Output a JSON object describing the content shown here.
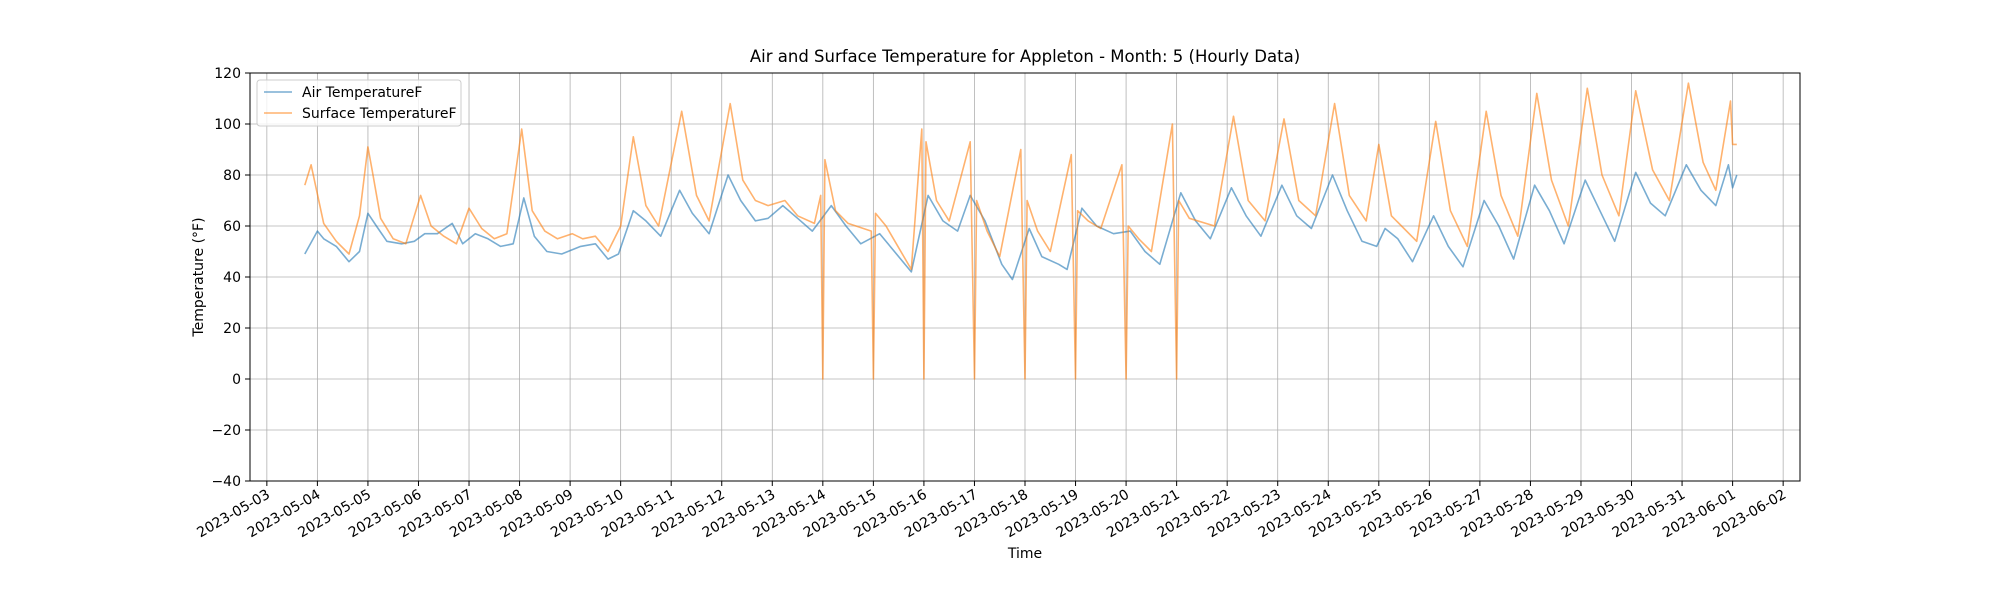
{
  "chart_data": {
    "type": "line",
    "title": "Air and Surface Temperature for Appleton - Month: 5 (Hourly Data)",
    "xlabel": "Time",
    "ylabel": "Temperature (°F)",
    "xlim": [
      "2023-05-02T16:00",
      "2023-06-02T08:00"
    ],
    "ylim": [
      -40,
      120
    ],
    "yticks": [
      -40,
      -20,
      0,
      20,
      40,
      60,
      80,
      100,
      120
    ],
    "xticks": [
      "2023-05-03",
      "2023-05-04",
      "2023-05-05",
      "2023-05-06",
      "2023-05-07",
      "2023-05-08",
      "2023-05-09",
      "2023-05-10",
      "2023-05-11",
      "2023-05-12",
      "2023-05-13",
      "2023-05-14",
      "2023-05-15",
      "2023-05-16",
      "2023-05-17",
      "2023-05-18",
      "2023-05-19",
      "2023-05-20",
      "2023-05-21",
      "2023-05-22",
      "2023-05-23",
      "2023-05-24",
      "2023-05-25",
      "2023-05-26",
      "2023-05-27",
      "2023-05-28",
      "2023-05-29",
      "2023-05-30",
      "2023-05-31",
      "2023-06-01",
      "2023-06-02"
    ],
    "grid": true,
    "legend_position": "top-left",
    "series": [
      {
        "name": "Air TemperatureF",
        "color": "#1f77b4",
        "points": [
          [
            "2023-05-03T18:00",
            49
          ],
          [
            "2023-05-04T00:00",
            58
          ],
          [
            "2023-05-04T03:00",
            55
          ],
          [
            "2023-05-04T09:00",
            52
          ],
          [
            "2023-05-04T15:00",
            46
          ],
          [
            "2023-05-04T20:00",
            50
          ],
          [
            "2023-05-05T00:00",
            65
          ],
          [
            "2023-05-05T04:00",
            60
          ],
          [
            "2023-05-05T09:00",
            54
          ],
          [
            "2023-05-05T16:00",
            53
          ],
          [
            "2023-05-05T22:00",
            54
          ],
          [
            "2023-05-06T03:00",
            57
          ],
          [
            "2023-05-06T09:00",
            57
          ],
          [
            "2023-05-06T16:00",
            61
          ],
          [
            "2023-05-06T21:00",
            53
          ],
          [
            "2023-05-07T03:00",
            57
          ],
          [
            "2023-05-07T09:00",
            55
          ],
          [
            "2023-05-07T15:00",
            52
          ],
          [
            "2023-05-07T21:00",
            53
          ],
          [
            "2023-05-08T02:00",
            71
          ],
          [
            "2023-05-08T07:00",
            56
          ],
          [
            "2023-05-08T13:00",
            50
          ],
          [
            "2023-05-08T20:00",
            49
          ],
          [
            "2023-05-09T05:00",
            52
          ],
          [
            "2023-05-09T12:00",
            53
          ],
          [
            "2023-05-09T18:00",
            47
          ],
          [
            "2023-05-09T23:00",
            49
          ],
          [
            "2023-05-10T06:00",
            66
          ],
          [
            "2023-05-10T12:00",
            62
          ],
          [
            "2023-05-10T19:00",
            56
          ],
          [
            "2023-05-11T04:00",
            74
          ],
          [
            "2023-05-11T10:00",
            65
          ],
          [
            "2023-05-11T18:00",
            57
          ],
          [
            "2023-05-12T03:00",
            80
          ],
          [
            "2023-05-12T09:00",
            70
          ],
          [
            "2023-05-12T16:00",
            62
          ],
          [
            "2023-05-12T22:00",
            63
          ],
          [
            "2023-05-13T05:00",
            68
          ],
          [
            "2023-05-13T12:00",
            63
          ],
          [
            "2023-05-13T19:00",
            58
          ],
          [
            "2023-05-14T04:00",
            68
          ],
          [
            "2023-05-14T11:00",
            60
          ],
          [
            "2023-05-14T18:00",
            53
          ],
          [
            "2023-05-15T03:00",
            57
          ],
          [
            "2023-05-15T10:00",
            50
          ],
          [
            "2023-05-15T18:00",
            42
          ],
          [
            "2023-05-16T02:00",
            72
          ],
          [
            "2023-05-16T09:00",
            62
          ],
          [
            "2023-05-16T16:00",
            58
          ],
          [
            "2023-05-16T22:00",
            72
          ],
          [
            "2023-05-17T05:00",
            62
          ],
          [
            "2023-05-17T13:00",
            45
          ],
          [
            "2023-05-17T18:00",
            39
          ],
          [
            "2023-05-18T02:00",
            59
          ],
          [
            "2023-05-18T08:00",
            48
          ],
          [
            "2023-05-18T16:00",
            45
          ],
          [
            "2023-05-18T20:00",
            43
          ],
          [
            "2023-05-19T03:00",
            67
          ],
          [
            "2023-05-19T10:00",
            60
          ],
          [
            "2023-05-19T18:00",
            57
          ],
          [
            "2023-05-20T02:00",
            58
          ],
          [
            "2023-05-20T09:00",
            50
          ],
          [
            "2023-05-20T16:00",
            45
          ],
          [
            "2023-05-21T02:00",
            73
          ],
          [
            "2023-05-21T09:00",
            62
          ],
          [
            "2023-05-21T16:00",
            55
          ],
          [
            "2023-05-22T02:00",
            75
          ],
          [
            "2023-05-22T09:00",
            64
          ],
          [
            "2023-05-22T16:00",
            56
          ],
          [
            "2023-05-23T02:00",
            76
          ],
          [
            "2023-05-23T09:00",
            64
          ],
          [
            "2023-05-23T16:00",
            59
          ],
          [
            "2023-05-24T02:00",
            80
          ],
          [
            "2023-05-24T09:00",
            66
          ],
          [
            "2023-05-24T16:00",
            54
          ],
          [
            "2023-05-24T23:00",
            52
          ],
          [
            "2023-05-25T03:00",
            59
          ],
          [
            "2023-05-25T09:00",
            55
          ],
          [
            "2023-05-25T16:00",
            46
          ],
          [
            "2023-05-26T02:00",
            64
          ],
          [
            "2023-05-26T09:00",
            52
          ],
          [
            "2023-05-26T16:00",
            44
          ],
          [
            "2023-05-27T02:00",
            70
          ],
          [
            "2023-05-27T09:00",
            60
          ],
          [
            "2023-05-27T16:00",
            47
          ],
          [
            "2023-05-28T02:00",
            76
          ],
          [
            "2023-05-28T09:00",
            66
          ],
          [
            "2023-05-28T16:00",
            53
          ],
          [
            "2023-05-29T02:00",
            78
          ],
          [
            "2023-05-29T09:00",
            66
          ],
          [
            "2023-05-29T16:00",
            54
          ],
          [
            "2023-05-30T02:00",
            81
          ],
          [
            "2023-05-30T09:00",
            69
          ],
          [
            "2023-05-30T16:00",
            64
          ],
          [
            "2023-05-31T02:00",
            84
          ],
          [
            "2023-05-31T09:00",
            74
          ],
          [
            "2023-05-31T16:00",
            68
          ],
          [
            "2023-05-31T22:00",
            84
          ],
          [
            "2023-06-01T00:00",
            75
          ],
          [
            "2023-06-01T02:00",
            80
          ]
        ]
      },
      {
        "name": "Surface TemperatureF",
        "color": "#ff7f0e",
        "points": [
          [
            "2023-05-03T18:00",
            76
          ],
          [
            "2023-05-03T21:00",
            84
          ],
          [
            "2023-05-04T03:00",
            61
          ],
          [
            "2023-05-04T09:00",
            54
          ],
          [
            "2023-05-04T15:00",
            49
          ],
          [
            "2023-05-04T20:00",
            64
          ],
          [
            "2023-05-05T00:00",
            91
          ],
          [
            "2023-05-05T02:00",
            82
          ],
          [
            "2023-05-05T06:00",
            63
          ],
          [
            "2023-05-05T12:00",
            55
          ],
          [
            "2023-05-05T18:00",
            53
          ],
          [
            "2023-05-06T01:00",
            72
          ],
          [
            "2023-05-06T06:00",
            60
          ],
          [
            "2023-05-06T12:00",
            56
          ],
          [
            "2023-05-06T18:00",
            53
          ],
          [
            "2023-05-07T00:00",
            67
          ],
          [
            "2023-05-07T06:00",
            59
          ],
          [
            "2023-05-07T12:00",
            55
          ],
          [
            "2023-05-07T18:00",
            57
          ],
          [
            "2023-05-08T01:00",
            98
          ],
          [
            "2023-05-08T06:00",
            66
          ],
          [
            "2023-05-08T12:00",
            58
          ],
          [
            "2023-05-08T18:00",
            55
          ],
          [
            "2023-05-09T01:00",
            57
          ],
          [
            "2023-05-09T06:00",
            55
          ],
          [
            "2023-05-09T12:00",
            56
          ],
          [
            "2023-05-09T18:00",
            50
          ],
          [
            "2023-05-10T00:00",
            60
          ],
          [
            "2023-05-10T06:00",
            95
          ],
          [
            "2023-05-10T12:00",
            68
          ],
          [
            "2023-05-10T18:00",
            60
          ],
          [
            "2023-05-11T05:00",
            105
          ],
          [
            "2023-05-11T12:00",
            72
          ],
          [
            "2023-05-11T18:00",
            62
          ],
          [
            "2023-05-12T04:00",
            108
          ],
          [
            "2023-05-12T10:00",
            78
          ],
          [
            "2023-05-12T16:00",
            70
          ],
          [
            "2023-05-12T22:00",
            68
          ],
          [
            "2023-05-13T06:00",
            70
          ],
          [
            "2023-05-13T12:00",
            64
          ],
          [
            "2023-05-13T20:00",
            61
          ],
          [
            "2023-05-13T23:00",
            72
          ],
          [
            "2023-05-14T00:00",
            0
          ],
          [
            "2023-05-14T01:00",
            86
          ],
          [
            "2023-05-14T06:00",
            66
          ],
          [
            "2023-05-14T12:00",
            61
          ],
          [
            "2023-05-14T23:00",
            58
          ],
          [
            "2023-05-15T00:00",
            0
          ],
          [
            "2023-05-15T01:00",
            65
          ],
          [
            "2023-05-15T06:00",
            60
          ],
          [
            "2023-05-15T18:00",
            43
          ],
          [
            "2023-05-15T23:00",
            98
          ],
          [
            "2023-05-16T00:00",
            0
          ],
          [
            "2023-05-16T01:00",
            93
          ],
          [
            "2023-05-16T06:00",
            70
          ],
          [
            "2023-05-16T12:00",
            62
          ],
          [
            "2023-05-16T22:00",
            93
          ],
          [
            "2023-05-17T00:00",
            0
          ],
          [
            "2023-05-17T01:00",
            70
          ],
          [
            "2023-05-17T06:00",
            58
          ],
          [
            "2023-05-17T12:00",
            48
          ],
          [
            "2023-05-17T22:00",
            90
          ],
          [
            "2023-05-18T00:00",
            0
          ],
          [
            "2023-05-18T01:00",
            70
          ],
          [
            "2023-05-18T06:00",
            58
          ],
          [
            "2023-05-18T12:00",
            50
          ],
          [
            "2023-05-18T22:00",
            88
          ],
          [
            "2023-05-19T00:00",
            0
          ],
          [
            "2023-05-19T01:00",
            66
          ],
          [
            "2023-05-19T06:00",
            62
          ],
          [
            "2023-05-19T12:00",
            59
          ],
          [
            "2023-05-19T22:00",
            84
          ],
          [
            "2023-05-20T00:00",
            0
          ],
          [
            "2023-05-20T01:00",
            60
          ],
          [
            "2023-05-20T06:00",
            55
          ],
          [
            "2023-05-20T12:00",
            50
          ],
          [
            "2023-05-20T22:00",
            100
          ],
          [
            "2023-05-21T00:00",
            0
          ],
          [
            "2023-05-21T01:00",
            70
          ],
          [
            "2023-05-21T06:00",
            63
          ],
          [
            "2023-05-21T18:00",
            60
          ],
          [
            "2023-05-22T03:00",
            103
          ],
          [
            "2023-05-22T10:00",
            70
          ],
          [
            "2023-05-22T18:00",
            62
          ],
          [
            "2023-05-23T03:00",
            102
          ],
          [
            "2023-05-23T10:00",
            70
          ],
          [
            "2023-05-23T18:00",
            64
          ],
          [
            "2023-05-24T03:00",
            108
          ],
          [
            "2023-05-24T10:00",
            72
          ],
          [
            "2023-05-24T18:00",
            62
          ],
          [
            "2023-05-25T00:00",
            92
          ],
          [
            "2023-05-25T06:00",
            64
          ],
          [
            "2023-05-25T18:00",
            54
          ],
          [
            "2023-05-26T03:00",
            101
          ],
          [
            "2023-05-26T10:00",
            66
          ],
          [
            "2023-05-26T18:00",
            52
          ],
          [
            "2023-05-27T03:00",
            105
          ],
          [
            "2023-05-27T10:00",
            72
          ],
          [
            "2023-05-27T18:00",
            56
          ],
          [
            "2023-05-28T03:00",
            112
          ],
          [
            "2023-05-28T10:00",
            78
          ],
          [
            "2023-05-28T18:00",
            60
          ],
          [
            "2023-05-29T03:00",
            114
          ],
          [
            "2023-05-29T10:00",
            80
          ],
          [
            "2023-05-29T18:00",
            64
          ],
          [
            "2023-05-30T02:00",
            113
          ],
          [
            "2023-05-30T10:00",
            82
          ],
          [
            "2023-05-30T18:00",
            70
          ],
          [
            "2023-05-31T03:00",
            116
          ],
          [
            "2023-05-31T10:00",
            85
          ],
          [
            "2023-05-31T16:00",
            74
          ],
          [
            "2023-05-31T21:00",
            99
          ],
          [
            "2023-05-31T23:00",
            109
          ],
          [
            "2023-06-01T00:00",
            92
          ],
          [
            "2023-06-01T02:00",
            92
          ]
        ]
      }
    ]
  }
}
